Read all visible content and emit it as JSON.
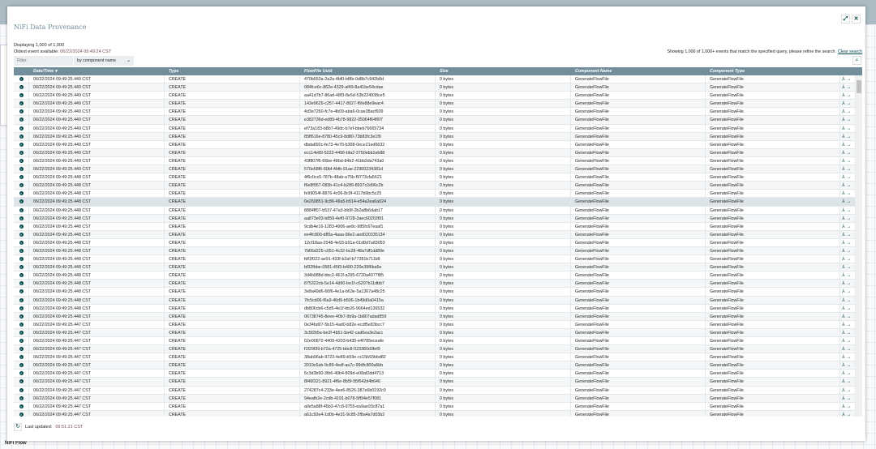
{
  "app": {
    "canvas_label": "NiFi Flow"
  },
  "dialog": {
    "title": "NiFi Data Provenance",
    "displaying": "Displaying 1,000 of 1,000",
    "oldest_label": "Oldest event available:",
    "oldest_value": "06/22/2024 09:49:24 CST",
    "filter_placeholder": "Filter",
    "filter_by": "by component name",
    "showing": "Showing 1,000 of 1,000+ events that match the specified query, please refine the search.",
    "clear_search": "Clear search",
    "last_updated_label": "Last updated:",
    "last_updated_value": "09:51:21 CST"
  },
  "table": {
    "columns": [
      "",
      "Date/Time ▾",
      "Type",
      "FlowFile Uuid",
      "Size",
      "Component Name",
      "Component Type",
      ""
    ],
    "selected_row": 15,
    "rows": [
      [
        "06/22/2024 09:49:25.449 CST",
        "470b553a-2a2a-4bf0-bf8b-0d8b7c942b8d"
      ],
      [
        "06/22/2024 09:49:25.449 CST",
        "084fce6c-862e-4329-af49-8a41be54cdae"
      ],
      [
        "06/22/2024 09:49:25.449 CST",
        "aa41d7b7-86ad-48f3-8e5d-53b224938ce5"
      ],
      [
        "06/22/2024 09:49:25.449 CST",
        "143e9629-c257-4417-8027-f6fe88e9eac4"
      ],
      [
        "06/22/2024 09:49:25.449 CST",
        "4d3e7260-fc7e-4b09-aba6-0cae38acf609"
      ],
      [
        "06/22/2024 09:49:25.449 CST",
        "e382736d-ed89-4b78-9822-05064f64f6f7"
      ],
      [
        "06/22/2024 09:49:25.449 CST",
        "ef73a183-b8b7-49dc-b7ef-bbeb76665734"
      ],
      [
        "06/22/2024 09:49:25.449 CST",
        "85ff616e-8780-45c9-8d80-73b83fc3e1f9"
      ],
      [
        "06/22/2024 09:49:25.449 CST",
        "dbda892c-fe73-4e70-b308-0ece21ed6632"
      ],
      [
        "06/22/2024 09:49:25.449 CST",
        "ecc14e89-5222-4496-bfa2-3750ebb1eb88"
      ],
      [
        "06/22/2024 09:49:25.449 CST",
        "43f807f6-66be-48bd-84b2-41bb2da743a0"
      ],
      [
        "06/22/2024 09:49:25.449 CST",
        "570e58f6-60bf-4bfb-91ae-22900234381d"
      ],
      [
        "06/22/2024 09:49:25.448 CST",
        "4f6c0cc5-787b-48ab-a75b-f9773cfa5621"
      ],
      [
        "06/22/2024 09:49:25.448 CST",
        "f6e8f957-083b-41c4-b289-8937c2d96c2b"
      ],
      [
        "06/22/2024 09:49:25.448 CST",
        "fe99054f-8876-4c06-8c9f-4117b9bc5c25"
      ],
      [
        "06/22/2024 09:49:25.448 CST",
        "0e269851-9c86-49a5-b514-e54a2ea6a024"
      ],
      [
        "06/22/2024 09:49:25.448 CST",
        "8884ff07-b537-47a3-bb9f-2b2a8b6dab17"
      ],
      [
        "06/22/2024 09:49:25.448 CST",
        "aa873e03-b859-4ef0-9728-3aec60203f91"
      ],
      [
        "06/22/2024 09:49:25.448 CST",
        "9cdb4e16-1283-4906-ae8c-985fc67eaaf1"
      ],
      [
        "06/22/2024 09:49:25.448 CST",
        "ee4fc800-d85a-4aaa-96e2-aed020335134"
      ],
      [
        "06/22/2024 09:49:25.448 CST",
        "12cf18aa-2548-4e93-b91a-01d8d7a83053"
      ],
      [
        "06/22/2024 09:49:25.448 CST",
        "7b66d225-c051-4c32-bc28-48a7df1dd89e"
      ],
      [
        "06/22/2024 09:49:25.448 CST",
        "fdf1f022-ae91-433f-b2af-b77281b711b8"
      ],
      [
        "06/22/2024 09:49:25.448 CST",
        "bf32fbbe-0581-45f3-b490-220e39f6ba5e"
      ],
      [
        "06/22/2024 09:49:25.448 CST",
        "3d4b988d-bbc2-461f-a295-6720a4077f85"
      ],
      [
        "06/22/2024 09:49:25.448 CST",
        "875322cb-5e14-4d90-be1f-c6207b11dbb7"
      ],
      [
        "06/22/2024 09:49:25.448 CST",
        "3e8a49d6-60f6-4e1a-b63e-5a1367a48c25"
      ],
      [
        "06/22/2024 09:49:25.448 CST",
        "7fc5cd06-f6a9-46d9-b506-1b49d0a0415a"
      ],
      [
        "06/22/2024 09:49:25.448 CST",
        "db806cb6-c5d5-4e1f-bb26-9664ed136532"
      ],
      [
        "06/22/2024 09:49:25.448 CST",
        "06738745-8eee-40b7-9b9a-1b807adad859"
      ],
      [
        "06/22/2024 09:49:25.447 CST",
        "0e34bd07-5b15-4ad0-b82e-ecdf5e83bcc7"
      ],
      [
        "06/22/2024 09:49:25.447 CST",
        "3c5f2b5e-be2f-4b51-9a42-cad6ea3e2acc"
      ],
      [
        "06/22/2024 09:49:25.447 CST",
        "02e00872-4409-4203-b435-e4f785eceafe"
      ],
      [
        "06/22/2024 09:49:25.447 CST",
        "f1f29f39-b72a-4725-bbc8-023380d3fef9"
      ],
      [
        "06/22/2024 09:49:25.447 CST",
        "38ab96ab-9723-4e89-b59e-cc15b93bbd82"
      ],
      [
        "06/22/2024 09:49:25.447 CST",
        "2019c6ab-9c89-4edf-aa7c-99dfc800a6bb"
      ],
      [
        "06/22/2024 09:49:25.447 CST",
        "5c3d3b90-3fb6-40b4-809d-e08af2dd4713"
      ],
      [
        "06/22/2024 09:49:25.447 CST",
        "8f46f321-8921-4f6e-8b5f-95f642d4b646"
      ],
      [
        "06/22/2024 09:49:25.447 CST",
        "274287c4-233e-4ee6-8526-387e6b0192c0"
      ],
      [
        "06/22/2024 09:49:25.447 CST",
        "94eafb2e-2cdb-4191-b078-5ff94e57f081"
      ],
      [
        "06/22/2024 09:49:25.447 CST",
        "a0e5a88f-45b3-47c8-9755-ea9ae93c87a1"
      ],
      [
        "06/22/2024 09:49:25.447 CST",
        "a61c92e4-1d0b-4e31-9c85-2f8a4a7d03b2"
      ]
    ],
    "type": "CREATE",
    "size": "0 bytes",
    "component_name": "GenerateFlowFile",
    "component_type": "GenerateFlowFile"
  },
  "colors": {
    "header": "#728e9b",
    "accent": "#004849",
    "title": "#728e9b"
  }
}
